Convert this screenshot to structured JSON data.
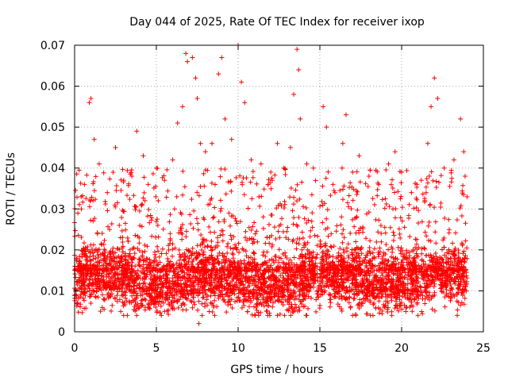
{
  "chart_data": {
    "type": "scatter",
    "title": "Day 044 of 2025, Rate Of TEC Index for receiver ixop",
    "xlabel": "GPS time / hours",
    "ylabel": "ROTI / TECUs",
    "xlim": [
      0,
      25
    ],
    "ylim": [
      0,
      0.07
    ],
    "xticks": [
      "0",
      "5",
      "10",
      "15",
      "20",
      "25"
    ],
    "yticks": [
      "0",
      "0.01",
      "0.02",
      "0.03",
      "0.04",
      "0.05",
      "0.06",
      "0.07"
    ],
    "grid": true,
    "marker": "+",
    "series_color": "#ff0000",
    "data_range": {
      "x_min": 0,
      "x_max": 24,
      "y_min": 0.002,
      "y_max": 0.07
    },
    "series": [
      {
        "name": "ROTI",
        "description_of_density": "dense band 0.005-0.025 throughout day",
        "points": [
          [
            0.2,
            0.029
          ],
          [
            0.4,
            0.033
          ],
          [
            0.6,
            0.036
          ],
          [
            0.9,
            0.056
          ],
          [
            1.0,
            0.057
          ],
          [
            1.2,
            0.047
          ],
          [
            1.5,
            0.041
          ],
          [
            2.0,
            0.034
          ],
          [
            2.5,
            0.045
          ],
          [
            3.0,
            0.037
          ],
          [
            3.5,
            0.038
          ],
          [
            3.8,
            0.049
          ],
          [
            4.2,
            0.043
          ],
          [
            4.5,
            0.036
          ],
          [
            5.0,
            0.04
          ],
          [
            5.5,
            0.037
          ],
          [
            6.0,
            0.042
          ],
          [
            6.3,
            0.051
          ],
          [
            6.6,
            0.055
          ],
          [
            6.8,
            0.068
          ],
          [
            6.9,
            0.066
          ],
          [
            7.2,
            0.067
          ],
          [
            7.4,
            0.062
          ],
          [
            7.5,
            0.057
          ],
          [
            7.7,
            0.046
          ],
          [
            8.0,
            0.044
          ],
          [
            8.4,
            0.046
          ],
          [
            8.8,
            0.063
          ],
          [
            9.0,
            0.067
          ],
          [
            9.2,
            0.052
          ],
          [
            9.6,
            0.047
          ],
          [
            10.0,
            0.07
          ],
          [
            10.2,
            0.061
          ],
          [
            10.4,
            0.056
          ],
          [
            10.8,
            0.042
          ],
          [
            11.4,
            0.041
          ],
          [
            12.0,
            0.039
          ],
          [
            12.4,
            0.046
          ],
          [
            12.8,
            0.04
          ],
          [
            13.2,
            0.045
          ],
          [
            13.4,
            0.058
          ],
          [
            13.6,
            0.069
          ],
          [
            13.7,
            0.064
          ],
          [
            13.8,
            0.052
          ],
          [
            14.2,
            0.041
          ],
          [
            14.6,
            0.04
          ],
          [
            15.2,
            0.055
          ],
          [
            15.4,
            0.05
          ],
          [
            15.8,
            0.036
          ],
          [
            16.4,
            0.046
          ],
          [
            16.6,
            0.053
          ],
          [
            17.0,
            0.039
          ],
          [
            17.4,
            0.043
          ],
          [
            18.0,
            0.038
          ],
          [
            18.6,
            0.036
          ],
          [
            19.2,
            0.041
          ],
          [
            19.6,
            0.044
          ],
          [
            20.0,
            0.039
          ],
          [
            20.6,
            0.034
          ],
          [
            21.2,
            0.037
          ],
          [
            21.6,
            0.046
          ],
          [
            21.8,
            0.055
          ],
          [
            22.0,
            0.062
          ],
          [
            22.2,
            0.057
          ],
          [
            22.6,
            0.04
          ],
          [
            23.2,
            0.042
          ],
          [
            23.6,
            0.052
          ],
          [
            23.8,
            0.044
          ],
          [
            24.0,
            0.033
          ],
          [
            7.6,
            0.002
          ],
          [
            7.8,
            0.004
          ],
          [
            3.0,
            0.004
          ],
          [
            5.5,
            0.005
          ],
          [
            12.4,
            0.004
          ],
          [
            14.2,
            0.004
          ],
          [
            17.0,
            0.004
          ],
          [
            19.4,
            0.004
          ],
          [
            21.0,
            0.004
          ],
          [
            23.4,
            0.004
          ]
        ]
      }
    ]
  }
}
